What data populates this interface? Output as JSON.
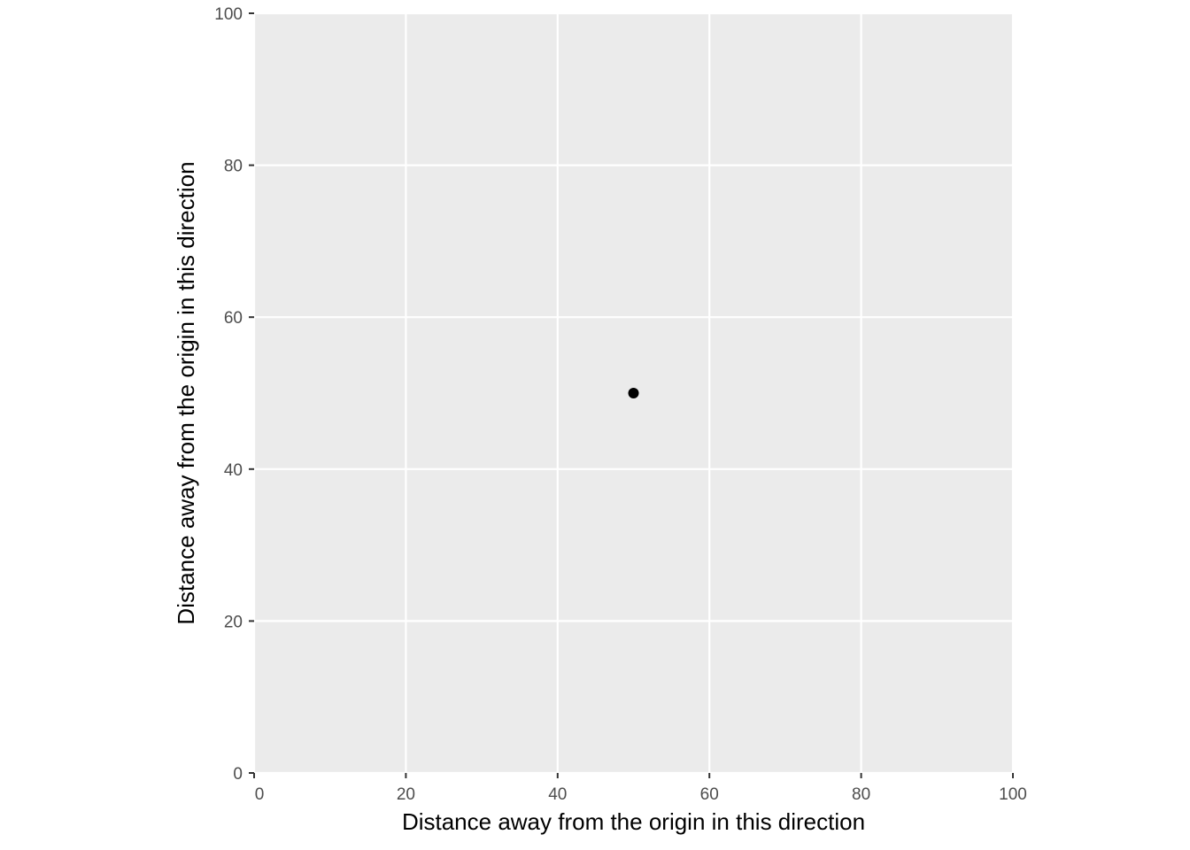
{
  "chart_data": {
    "type": "scatter",
    "title": "",
    "xlabel": "Distance away from the origin in this direction",
    "ylabel": "Distance away from the origin in this direction",
    "xlim": [
      0,
      100
    ],
    "ylim": [
      0,
      100
    ],
    "x_ticks": [
      0,
      20,
      40,
      60,
      80,
      100
    ],
    "y_ticks": [
      0,
      20,
      40,
      60,
      80,
      100
    ],
    "grid": true,
    "series": [
      {
        "points": [
          {
            "x": 50,
            "y": 50
          }
        ]
      }
    ]
  },
  "colors": {
    "panel_background": "#ebebeb",
    "grid_line": "#ffffff",
    "point": "#000000",
    "tick": "#333333"
  }
}
